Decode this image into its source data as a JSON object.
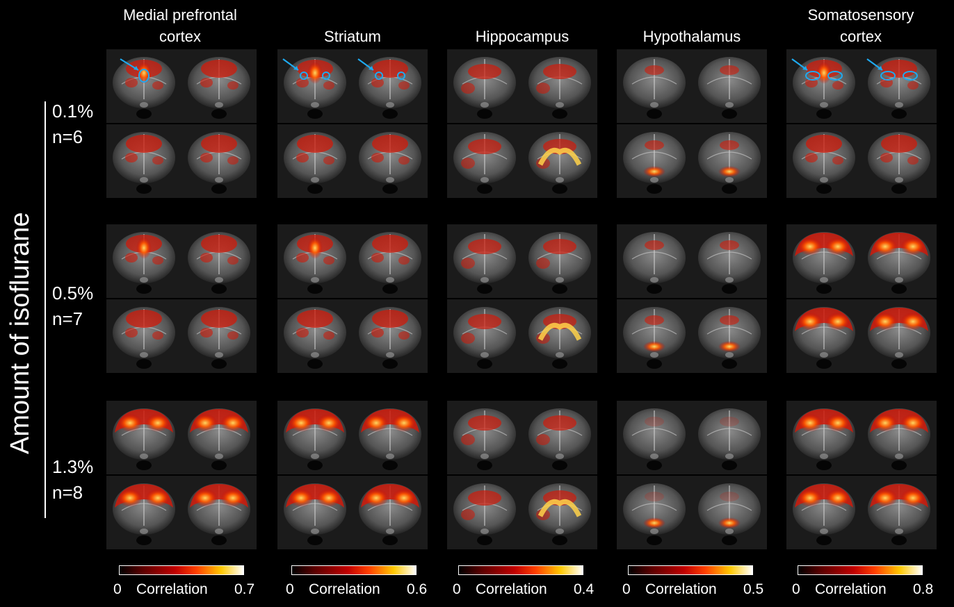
{
  "figure": {
    "y_axis_title": "Amount of isoflurane",
    "regions": [
      {
        "title_lines": [
          "Medial prefrontal",
          "cortex"
        ],
        "colorbar": {
          "min": "0",
          "max": "0.7",
          "label": "Correlation"
        }
      },
      {
        "title_lines": [
          "",
          "Striatum"
        ],
        "colorbar": {
          "min": "0",
          "max": "0.6",
          "label": "Correlation"
        }
      },
      {
        "title_lines": [
          "",
          "Hippocampus"
        ],
        "colorbar": {
          "min": "0",
          "max": "0.4",
          "label": "Correlation"
        }
      },
      {
        "title_lines": [
          "",
          "Hypothalamus"
        ],
        "colorbar": {
          "min": "0",
          "max": "0.5",
          "label": "Correlation"
        }
      },
      {
        "title_lines": [
          "Somatosensory",
          "cortex"
        ],
        "colorbar": {
          "min": "0",
          "max": "0.8",
          "label": "Correlation"
        }
      }
    ],
    "doses": [
      {
        "percent": "0.1%",
        "n": "n=6"
      },
      {
        "percent": "0.5%",
        "n": "n=7"
      },
      {
        "percent": "1.3%",
        "n": "n=8"
      }
    ],
    "colors": {
      "background": "#000000",
      "roi_outline": "#1eaaf0",
      "arrow": "#1eaaf0",
      "colormap": [
        "#000000",
        "#c00000",
        "#ff4000",
        "#ffc800",
        "#ffffff"
      ]
    }
  }
}
